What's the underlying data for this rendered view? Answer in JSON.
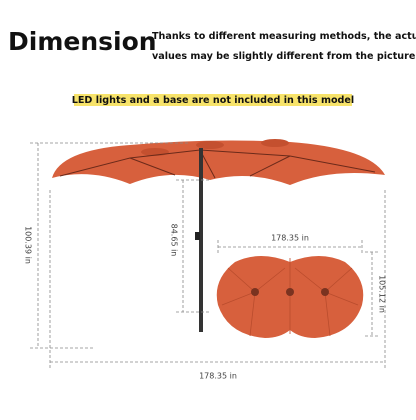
{
  "header": {
    "title": "Dimension",
    "note": [
      "Thanks to different measuring methods, the actual",
      "values may be slightly different from the picture."
    ]
  },
  "banner": "LED lights and a base are not included in this model",
  "dimensions": {
    "total_height": "100.39 in",
    "pole_height": "84.65 in",
    "top_width": "178.35 in",
    "top_depth": "105.12 in",
    "bottom_width": "178.35 in"
  }
}
